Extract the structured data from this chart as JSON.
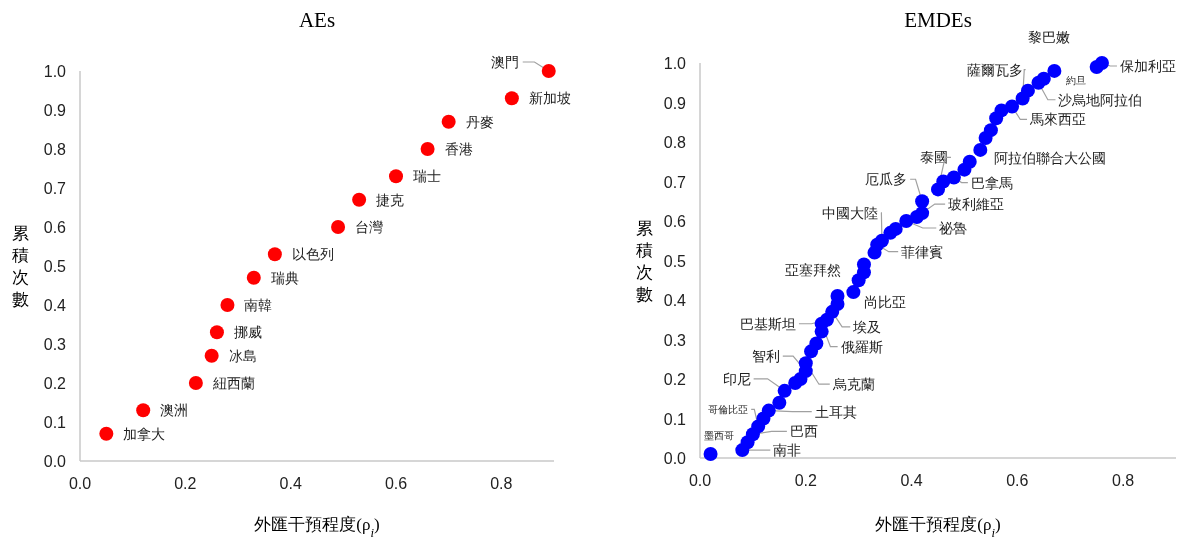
{
  "chart_data": [
    {
      "type": "scatter",
      "title": "AEs",
      "xlabel": "外匯干預程度(ρ$_{i}$)",
      "ylabel": "累積次數",
      "marker": "circle",
      "xlim": [
        0,
        0.9
      ],
      "ylim": [
        0,
        1.0
      ],
      "xticks": [
        {
          "value": 0,
          "label": "0.0"
        },
        {
          "value": 0.2,
          "label": "0.2"
        },
        {
          "value": 0.4,
          "label": "0.4"
        },
        {
          "value": 0.6,
          "label": "0.6"
        },
        {
          "value": 0.8,
          "label": "0.8"
        }
      ],
      "yticks": [
        {
          "value": 0,
          "label": "0.0"
        },
        {
          "value": 0.1,
          "label": "0.1"
        },
        {
          "value": 0.2,
          "label": "0.2"
        },
        {
          "value": 0.3,
          "label": "0.3"
        },
        {
          "value": 0.4,
          "label": "0.4"
        },
        {
          "value": 0.5,
          "label": "0.5"
        },
        {
          "value": 0.6,
          "label": "0.6"
        },
        {
          "value": 0.7,
          "label": "0.7"
        },
        {
          "value": 0.8,
          "label": "0.8"
        },
        {
          "value": 0.9,
          "label": "0.9"
        },
        {
          "value": 1.0,
          "label": "1.0"
        }
      ],
      "series": [
        {
          "color": "#ff0000",
          "x": [
            0.05,
            0.12,
            0.22,
            0.25,
            0.26,
            0.28,
            0.33,
            0.37,
            0.49,
            0.53,
            0.6,
            0.66,
            0.7,
            0.82,
            0.89
          ],
          "values": [
            0.07,
            0.13,
            0.2,
            0.27,
            0.33,
            0.4,
            0.47,
            0.53,
            0.6,
            0.67,
            0.73,
            0.8,
            0.87,
            0.93,
            1.0
          ]
        }
      ],
      "annotations": [
        {
          "text": "加拿大",
          "x": 0.05,
          "y": 0.07
        },
        {
          "text": "澳洲",
          "x": 0.12,
          "y": 0.13
        },
        {
          "text": "紐西蘭",
          "x": 0.22,
          "y": 0.2
        },
        {
          "text": "冰島",
          "x": 0.25,
          "y": 0.27
        },
        {
          "text": "挪威",
          "x": 0.26,
          "y": 0.33
        },
        {
          "text": "南韓",
          "x": 0.28,
          "y": 0.4
        },
        {
          "text": "瑞典",
          "x": 0.33,
          "y": 0.47
        },
        {
          "text": "以色列",
          "x": 0.37,
          "y": 0.53
        },
        {
          "text": "台灣",
          "x": 0.49,
          "y": 0.6
        },
        {
          "text": "捷克",
          "x": 0.53,
          "y": 0.67
        },
        {
          "text": "瑞士",
          "x": 0.6,
          "y": 0.73
        },
        {
          "text": "香港",
          "x": 0.66,
          "y": 0.8
        },
        {
          "text": "丹麥",
          "x": 0.7,
          "y": 0.87
        },
        {
          "text": "新加坡",
          "x": 0.82,
          "y": 0.93
        },
        {
          "text": "澳門",
          "x": 0.89,
          "y": 1.0
        }
      ]
    },
    {
      "type": "scatter",
      "title": "EMDEs",
      "xlabel": "外匯干預程度(ρ$_{i}$)",
      "ylabel": "累積次數",
      "marker": "circle",
      "xlim": [
        0,
        0.9
      ],
      "ylim": [
        0,
        1.0
      ],
      "xticks": [
        {
          "value": 0,
          "label": "0.0"
        },
        {
          "value": 0.2,
          "label": "0.2"
        },
        {
          "value": 0.4,
          "label": "0.4"
        },
        {
          "value": 0.6,
          "label": "0.6"
        },
        {
          "value": 0.8,
          "label": "0.8"
        }
      ],
      "yticks": [
        {
          "value": 0,
          "label": "0.0"
        },
        {
          "value": 0.1,
          "label": "0.1"
        },
        {
          "value": 0.2,
          "label": "0.2"
        },
        {
          "value": 0.3,
          "label": "0.3"
        },
        {
          "value": 0.4,
          "label": "0.4"
        },
        {
          "value": 0.5,
          "label": "0.5"
        },
        {
          "value": 0.6,
          "label": "0.6"
        },
        {
          "value": 0.7,
          "label": "0.7"
        },
        {
          "value": 0.8,
          "label": "0.8"
        },
        {
          "value": 0.9,
          "label": "0.9"
        },
        {
          "value": 1.0,
          "label": "1.0"
        }
      ],
      "series": [
        {
          "color": "#0000ff",
          "x": [
            0.02,
            0.08,
            0.09,
            0.1,
            0.11,
            0.12,
            0.13,
            0.15,
            0.16,
            0.18,
            0.19,
            0.2,
            0.2,
            0.21,
            0.22,
            0.23,
            0.23,
            0.24,
            0.25,
            0.26,
            0.26,
            0.29,
            0.3,
            0.31,
            0.31,
            0.33,
            0.335,
            0.344,
            0.36,
            0.37,
            0.39,
            0.41,
            0.42,
            0.42,
            0.45,
            0.46,
            0.48,
            0.5,
            0.51,
            0.53,
            0.54,
            0.55,
            0.56,
            0.57,
            0.59,
            0.61,
            0.62,
            0.64,
            0.65,
            0.67,
            0.75,
            0.76
          ],
          "values": [
            0.01,
            0.02,
            0.04,
            0.06,
            0.08,
            0.1,
            0.12,
            0.14,
            0.17,
            0.19,
            0.2,
            0.22,
            0.24,
            0.27,
            0.29,
            0.32,
            0.34,
            0.35,
            0.37,
            0.39,
            0.41,
            0.42,
            0.45,
            0.47,
            0.49,
            0.52,
            0.54,
            0.55,
            0.57,
            0.58,
            0.6,
            0.61,
            0.62,
            0.65,
            0.68,
            0.7,
            0.71,
            0.73,
            0.75,
            0.78,
            0.81,
            0.83,
            0.86,
            0.88,
            0.89,
            0.91,
            0.93,
            0.95,
            0.96,
            0.98,
            0.99,
            1.0
          ]
        }
      ],
      "annotations": [
        {
          "text": "墨西哥",
          "x": 0.02,
          "y": 0.01
        },
        {
          "text": "南非",
          "x": 0.08,
          "y": 0.02
        },
        {
          "text": "巴西",
          "x": 0.1,
          "y": 0.06
        },
        {
          "text": "哥倫比亞",
          "x": 0.11,
          "y": 0.08
        },
        {
          "text": "土耳其",
          "x": 0.13,
          "y": 0.12
        },
        {
          "text": "印尼",
          "x": 0.16,
          "y": 0.17
        },
        {
          "text": "智利",
          "x": 0.2,
          "y": 0.22
        },
        {
          "text": "烏克蘭",
          "x": 0.2,
          "y": 0.24
        },
        {
          "text": "俄羅斯",
          "x": 0.23,
          "y": 0.34
        },
        {
          "text": "巴基斯坦",
          "x": 0.24,
          "y": 0.35
        },
        {
          "text": "埃及",
          "x": 0.25,
          "y": 0.37
        },
        {
          "text": "亞塞拜然",
          "x": 0.3,
          "y": 0.45
        },
        {
          "text": "尚比亞",
          "x": 0.29,
          "y": 0.42
        },
        {
          "text": "菲律賓",
          "x": 0.335,
          "y": 0.54
        },
        {
          "text": "中國大陸",
          "x": 0.344,
          "y": 0.55
        },
        {
          "text": "祕魯",
          "x": 0.39,
          "y": 0.6
        },
        {
          "text": "厄瓜多",
          "x": 0.42,
          "y": 0.65
        },
        {
          "text": "玻利維亞",
          "x": 0.42,
          "y": 0.62
        },
        {
          "text": "泰國",
          "x": 0.45,
          "y": 0.68
        },
        {
          "text": "巴拿馬",
          "x": 0.48,
          "y": 0.71
        },
        {
          "text": "阿拉伯聯合大公國",
          "x": 0.53,
          "y": 0.78
        },
        {
          "text": "馬來西亞",
          "x": 0.59,
          "y": 0.89
        },
        {
          "text": "薩爾瓦多",
          "x": 0.61,
          "y": 0.91
        },
        {
          "text": "沙烏地阿拉伯",
          "x": 0.64,
          "y": 0.95
        },
        {
          "text": "約旦",
          "x": 0.65,
          "y": 0.96
        },
        {
          "text": "黎巴嫩",
          "x": 0.67,
          "y": 0.98
        },
        {
          "text": "保加利亞",
          "x": 0.76,
          "y": 1.0
        }
      ]
    }
  ]
}
